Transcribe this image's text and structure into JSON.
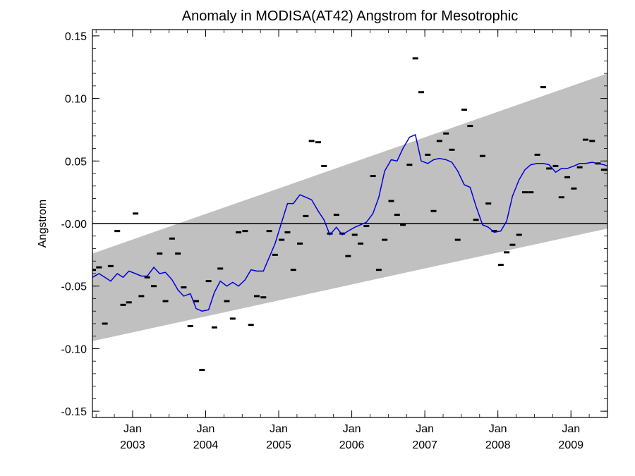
{
  "chart_data": {
    "type": "line",
    "title": "Anomaly in MODISA(AT42) Angstrom for Mesotrophic",
    "xlabel": "",
    "ylabel": "Angstrom",
    "xlim": [
      2002.45,
      2009.5
    ],
    "ylim": [
      -0.155,
      0.155
    ],
    "y_ticks": [
      0.15,
      0.1,
      0.05,
      0.0,
      -0.05,
      -0.1,
      -0.15
    ],
    "y_tick_labels": [
      "0.15",
      "0.10",
      "0.05",
      "-0.00",
      "-0.05",
      "-0.10",
      "-0.15"
    ],
    "x_ticks": [
      {
        "x": 2003.0,
        "month": "Jan",
        "year": "2003"
      },
      {
        "x": 2004.0,
        "month": "Jan",
        "year": "2004"
      },
      {
        "x": 2005.0,
        "month": "Jan",
        "year": "2005"
      },
      {
        "x": 2006.0,
        "month": "Jan",
        "year": "2006"
      },
      {
        "x": 2007.0,
        "month": "Jan",
        "year": "2007"
      },
      {
        "x": 2008.0,
        "month": "Jan",
        "year": "2008"
      },
      {
        "x": 2009.0,
        "month": "Jan",
        "year": "2009"
      }
    ],
    "zero_line": 0.0,
    "band": {
      "color": "#c0c0c0",
      "x": [
        2002.45,
        2009.5
      ],
      "upper": [
        -0.024,
        0.12
      ],
      "lower": [
        -0.094,
        -0.004
      ]
    },
    "smooth_series": {
      "color": "#0000dd",
      "x": [
        2002.45,
        2002.54,
        2002.62,
        2002.7,
        2002.79,
        2002.87,
        2002.95,
        2003.04,
        2003.12,
        2003.2,
        2003.29,
        2003.37,
        2003.45,
        2003.54,
        2003.62,
        2003.7,
        2003.79,
        2003.87,
        2003.95,
        2004.04,
        2004.12,
        2004.2,
        2004.29,
        2004.37,
        2004.45,
        2004.54,
        2004.62,
        2004.7,
        2004.79,
        2004.87,
        2004.95,
        2005.04,
        2005.12,
        2005.2,
        2005.29,
        2005.37,
        2005.45,
        2005.54,
        2005.62,
        2005.7,
        2005.79,
        2005.87,
        2005.95,
        2006.04,
        2006.12,
        2006.2,
        2006.29,
        2006.37,
        2006.45,
        2006.54,
        2006.62,
        2006.7,
        2006.79,
        2006.87,
        2006.95,
        2007.04,
        2007.12,
        2007.2,
        2007.29,
        2007.37,
        2007.45,
        2007.54,
        2007.62,
        2007.7,
        2007.79,
        2007.87,
        2007.95,
        2008.04,
        2008.12,
        2008.2,
        2008.29,
        2008.37,
        2008.45,
        2008.54,
        2008.62,
        2008.7,
        2008.79,
        2008.87,
        2008.95,
        2009.04,
        2009.12,
        2009.2,
        2009.29,
        2009.37,
        2009.45,
        2009.5
      ],
      "y": [
        -0.043,
        -0.04,
        -0.043,
        -0.046,
        -0.04,
        -0.043,
        -0.038,
        -0.04,
        -0.042,
        -0.042,
        -0.035,
        -0.04,
        -0.039,
        -0.045,
        -0.053,
        -0.058,
        -0.056,
        -0.068,
        -0.07,
        -0.069,
        -0.055,
        -0.046,
        -0.05,
        -0.047,
        -0.05,
        -0.045,
        -0.037,
        -0.038,
        -0.038,
        -0.027,
        -0.016,
        0.001,
        0.016,
        0.016,
        0.023,
        0.021,
        0.019,
        0.01,
        0.003,
        -0.009,
        -0.003,
        -0.009,
        -0.006,
        -0.003,
        -0.001,
        0.001,
        0.008,
        0.021,
        0.042,
        0.051,
        0.05,
        0.06,
        0.069,
        0.071,
        0.05,
        0.048,
        0.051,
        0.052,
        0.051,
        0.049,
        0.042,
        0.031,
        0.029,
        0.014,
        -0.001,
        -0.003,
        -0.007,
        -0.006,
        0.002,
        0.022,
        0.035,
        0.043,
        0.047,
        0.048,
        0.048,
        0.047,
        0.041,
        0.044,
        0.044,
        0.046,
        0.048,
        0.048,
        0.049,
        0.048,
        0.047,
        0.046
      ]
    },
    "monthly_points": {
      "color": "#000000",
      "x": [
        2002.46,
        2002.54,
        2002.62,
        2002.7,
        2002.79,
        2002.87,
        2002.95,
        2003.04,
        2003.12,
        2003.2,
        2003.29,
        2003.37,
        2003.45,
        2003.54,
        2003.62,
        2003.7,
        2003.79,
        2003.87,
        2003.95,
        2004.04,
        2004.12,
        2004.2,
        2004.29,
        2004.37,
        2004.45,
        2004.54,
        2004.62,
        2004.7,
        2004.79,
        2004.87,
        2004.95,
        2005.04,
        2005.12,
        2005.2,
        2005.29,
        2005.37,
        2005.45,
        2005.54,
        2005.62,
        2005.7,
        2005.79,
        2005.87,
        2005.95,
        2006.04,
        2006.12,
        2006.2,
        2006.29,
        2006.37,
        2006.45,
        2006.54,
        2006.62,
        2006.7,
        2006.79,
        2006.87,
        2006.95,
        2007.04,
        2007.12,
        2007.2,
        2007.29,
        2007.37,
        2007.45,
        2007.54,
        2007.62,
        2007.7,
        2007.79,
        2007.87,
        2007.95,
        2008.04,
        2008.12,
        2008.2,
        2008.29,
        2008.37,
        2008.45,
        2008.54,
        2008.62,
        2008.7,
        2008.79,
        2008.87,
        2008.95,
        2009.04,
        2009.12,
        2009.2,
        2009.29,
        2009.37,
        2009.45,
        2009.5
      ],
      "y": [
        -0.037,
        -0.035,
        -0.08,
        -0.034,
        -0.006,
        -0.065,
        -0.063,
        0.008,
        -0.058,
        -0.043,
        -0.05,
        -0.024,
        -0.062,
        -0.012,
        -0.024,
        -0.051,
        -0.082,
        -0.062,
        -0.117,
        -0.046,
        -0.083,
        -0.036,
        -0.062,
        -0.076,
        -0.007,
        -0.006,
        -0.081,
        -0.058,
        -0.059,
        -0.006,
        -0.025,
        -0.013,
        -0.007,
        -0.037,
        -0.016,
        0.006,
        0.066,
        0.065,
        0.046,
        -0.008,
        0.007,
        -0.008,
        -0.026,
        -0.009,
        -0.016,
        -0.002,
        0.038,
        -0.037,
        -0.013,
        0.018,
        0.007,
        -0.001,
        0.047,
        0.132,
        0.105,
        0.055,
        0.01,
        0.066,
        0.072,
        0.059,
        -0.013,
        0.091,
        0.078,
        0.003,
        0.054,
        0.016,
        -0.006,
        -0.033,
        -0.023,
        -0.017,
        -0.009,
        0.025,
        0.025,
        0.055,
        0.109,
        0.044,
        0.046,
        0.021,
        0.037,
        0.028,
        0.045,
        0.067,
        0.066,
        0.048,
        0.043,
        0.043
      ]
    }
  }
}
